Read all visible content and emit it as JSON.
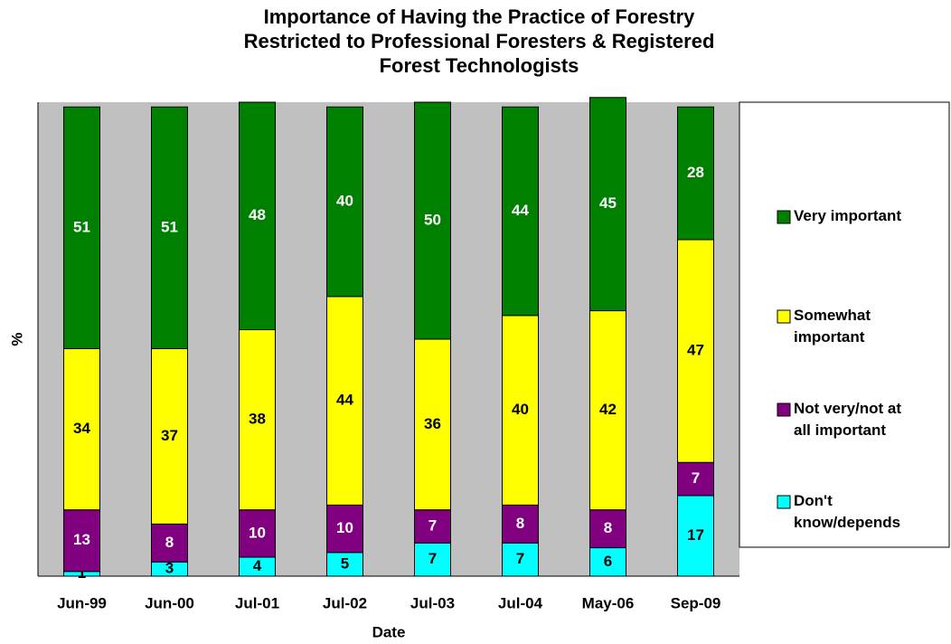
{
  "chart_data": {
    "type": "stacked_bar",
    "title": "Importance of Having the Practice of Forestry Restricted to Professional Foresters & Registered Forest Technologists",
    "xlabel": "Date",
    "ylabel": "%",
    "categories": [
      "Jun-99",
      "Jun-00",
      "Jul-01",
      "Jul-02",
      "Jul-03",
      "Jul-04",
      "May-06",
      "Sep-09"
    ],
    "series": [
      {
        "name": "Don't know/depends",
        "color": "#00ffff",
        "values": [
          1,
          3,
          4,
          5,
          7,
          7,
          6,
          17
        ]
      },
      {
        "name": "Not very/not at all important",
        "color": "#800080",
        "values": [
          13,
          8,
          10,
          10,
          7,
          8,
          8,
          7
        ]
      },
      {
        "name": "Somewhat important",
        "color": "#ffff00",
        "values": [
          34,
          37,
          38,
          44,
          36,
          40,
          42,
          47
        ]
      },
      {
        "name": "Very important",
        "color": "#008000",
        "values": [
          51,
          51,
          48,
          40,
          50,
          44,
          45,
          28
        ]
      }
    ],
    "ylim": [
      0,
      100
    ],
    "legend": "right"
  }
}
